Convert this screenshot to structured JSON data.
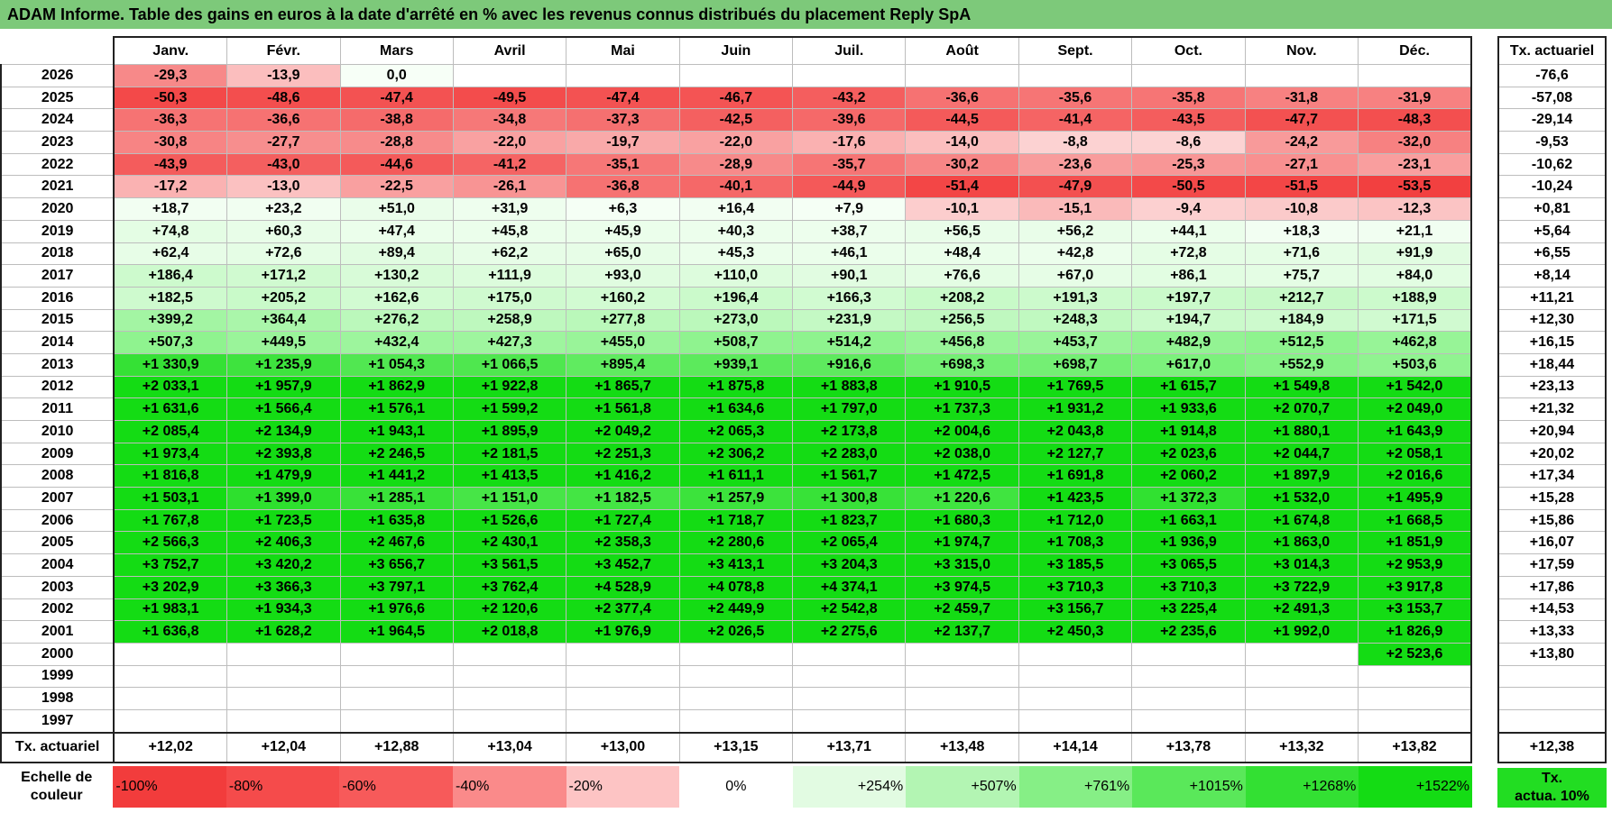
{
  "title": "ADAM Informe. Table des gains en euros à la date d'arrêté en % avec les revenus connus distribués du placement Reply SpA",
  "months": [
    "Janv.",
    "Févr.",
    "Mars",
    "Avril",
    "Mai",
    "Juin",
    "Juil.",
    "Août",
    "Sept.",
    "Oct.",
    "Nov.",
    "Déc."
  ],
  "tx_header": "Tx. actuariel",
  "rows": [
    {
      "year": "2026",
      "tx": "-76,6",
      "values": [
        "-29,3",
        "-13,9",
        "0,0",
        "",
        "",
        "",
        "",
        "",
        "",
        "",
        "",
        ""
      ]
    },
    {
      "year": "2025",
      "tx": "-57,08",
      "values": [
        "-50,3",
        "-48,6",
        "-47,4",
        "-49,5",
        "-47,4",
        "-46,7",
        "-43,2",
        "-36,6",
        "-35,6",
        "-35,8",
        "-31,8",
        "-31,9"
      ]
    },
    {
      "year": "2024",
      "tx": "-29,14",
      "values": [
        "-36,3",
        "-36,6",
        "-38,8",
        "-34,8",
        "-37,3",
        "-42,5",
        "-39,6",
        "-44,5",
        "-41,4",
        "-43,5",
        "-47,7",
        "-48,3"
      ]
    },
    {
      "year": "2023",
      "tx": "-9,53",
      "values": [
        "-30,8",
        "-27,7",
        "-28,8",
        "-22,0",
        "-19,7",
        "-22,0",
        "-17,6",
        "-14,0",
        "-8,8",
        "-8,6",
        "-24,2",
        "-32,0"
      ]
    },
    {
      "year": "2022",
      "tx": "-10,62",
      "values": [
        "-43,9",
        "-43,0",
        "-44,6",
        "-41,2",
        "-35,1",
        "-28,9",
        "-35,7",
        "-30,2",
        "-23,6",
        "-25,3",
        "-27,1",
        "-23,1"
      ]
    },
    {
      "year": "2021",
      "tx": "-10,24",
      "values": [
        "-17,2",
        "-13,0",
        "-22,5",
        "-26,1",
        "-36,8",
        "-40,1",
        "-44,9",
        "-51,4",
        "-47,9",
        "-50,5",
        "-51,5",
        "-53,5"
      ]
    },
    {
      "year": "2020",
      "tx": "+0,81",
      "values": [
        "+18,7",
        "+23,2",
        "+51,0",
        "+31,9",
        "+6,3",
        "+16,4",
        "+7,9",
        "-10,1",
        "-15,1",
        "-9,4",
        "-10,8",
        "-12,3"
      ]
    },
    {
      "year": "2019",
      "tx": "+5,64",
      "values": [
        "+74,8",
        "+60,3",
        "+47,4",
        "+45,8",
        "+45,9",
        "+40,3",
        "+38,7",
        "+56,5",
        "+56,2",
        "+44,1",
        "+18,3",
        "+21,1"
      ]
    },
    {
      "year": "2018",
      "tx": "+6,55",
      "values": [
        "+62,4",
        "+72,6",
        "+89,4",
        "+62,2",
        "+65,0",
        "+45,3",
        "+46,1",
        "+48,4",
        "+42,8",
        "+72,8",
        "+71,6",
        "+91,9"
      ]
    },
    {
      "year": "2017",
      "tx": "+8,14",
      "values": [
        "+186,4",
        "+171,2",
        "+130,2",
        "+111,9",
        "+93,0",
        "+110,0",
        "+90,1",
        "+76,6",
        "+67,0",
        "+86,1",
        "+75,7",
        "+84,0"
      ]
    },
    {
      "year": "2016",
      "tx": "+11,21",
      "values": [
        "+182,5",
        "+205,2",
        "+162,6",
        "+175,0",
        "+160,2",
        "+196,4",
        "+166,3",
        "+208,2",
        "+191,3",
        "+197,7",
        "+212,7",
        "+188,9"
      ]
    },
    {
      "year": "2015",
      "tx": "+12,30",
      "values": [
        "+399,2",
        "+364,4",
        "+276,2",
        "+258,9",
        "+277,8",
        "+273,0",
        "+231,9",
        "+256,5",
        "+248,3",
        "+194,7",
        "+184,9",
        "+171,5"
      ]
    },
    {
      "year": "2014",
      "tx": "+16,15",
      "values": [
        "+507,3",
        "+449,5",
        "+432,4",
        "+427,3",
        "+455,0",
        "+508,7",
        "+514,2",
        "+456,8",
        "+453,7",
        "+482,9",
        "+512,5",
        "+462,8"
      ]
    },
    {
      "year": "2013",
      "tx": "+18,44",
      "values": [
        "+1 330,9",
        "+1 235,9",
        "+1 054,3",
        "+1 066,5",
        "+895,4",
        "+939,1",
        "+916,6",
        "+698,3",
        "+698,7",
        "+617,0",
        "+552,9",
        "+503,6"
      ]
    },
    {
      "year": "2012",
      "tx": "+23,13",
      "values": [
        "+2 033,1",
        "+1 957,9",
        "+1 862,9",
        "+1 922,8",
        "+1 865,7",
        "+1 875,8",
        "+1 883,8",
        "+1 910,5",
        "+1 769,5",
        "+1 615,7",
        "+1 549,8",
        "+1 542,0"
      ]
    },
    {
      "year": "2011",
      "tx": "+21,32",
      "values": [
        "+1 631,6",
        "+1 566,4",
        "+1 576,1",
        "+1 599,2",
        "+1 561,8",
        "+1 634,6",
        "+1 797,0",
        "+1 737,3",
        "+1 931,2",
        "+1 933,6",
        "+2 070,7",
        "+2 049,0"
      ]
    },
    {
      "year": "2010",
      "tx": "+20,94",
      "values": [
        "+2 085,4",
        "+2 134,9",
        "+1 943,1",
        "+1 895,9",
        "+2 049,2",
        "+2 065,3",
        "+2 173,8",
        "+2 004,6",
        "+2 043,8",
        "+1 914,8",
        "+1 880,1",
        "+1 643,9"
      ]
    },
    {
      "year": "2009",
      "tx": "+20,02",
      "values": [
        "+1 973,4",
        "+2 393,8",
        "+2 246,5",
        "+2 181,5",
        "+2 251,3",
        "+2 306,2",
        "+2 283,0",
        "+2 038,0",
        "+2 127,7",
        "+2 023,6",
        "+2 044,7",
        "+2 058,1"
      ]
    },
    {
      "year": "2008",
      "tx": "+17,34",
      "values": [
        "+1 816,8",
        "+1 479,9",
        "+1 441,2",
        "+1 413,5",
        "+1 416,2",
        "+1 611,1",
        "+1 561,7",
        "+1 472,5",
        "+1 691,8",
        "+2 060,2",
        "+1 897,9",
        "+2 016,6"
      ]
    },
    {
      "year": "2007",
      "tx": "+15,28",
      "values": [
        "+1 503,1",
        "+1 399,0",
        "+1 285,1",
        "+1 151,0",
        "+1 182,5",
        "+1 257,9",
        "+1 300,8",
        "+1 220,6",
        "+1 423,5",
        "+1 372,3",
        "+1 532,0",
        "+1 495,9"
      ]
    },
    {
      "year": "2006",
      "tx": "+15,86",
      "values": [
        "+1 767,8",
        "+1 723,5",
        "+1 635,8",
        "+1 526,6",
        "+1 727,4",
        "+1 718,7",
        "+1 823,7",
        "+1 680,3",
        "+1 712,0",
        "+1 663,1",
        "+1 674,8",
        "+1 668,5"
      ]
    },
    {
      "year": "2005",
      "tx": "+16,07",
      "values": [
        "+2 566,3",
        "+2 406,3",
        "+2 467,6",
        "+2 430,1",
        "+2 358,3",
        "+2 280,6",
        "+2 065,4",
        "+1 974,7",
        "+1 708,3",
        "+1 936,9",
        "+1 863,0",
        "+1 851,9"
      ]
    },
    {
      "year": "2004",
      "tx": "+17,59",
      "values": [
        "+3 752,7",
        "+3 420,2",
        "+3 656,7",
        "+3 561,5",
        "+3 452,7",
        "+3 413,1",
        "+3 204,3",
        "+3 315,0",
        "+3 185,5",
        "+3 065,5",
        "+3 014,3",
        "+2 953,9"
      ]
    },
    {
      "year": "2003",
      "tx": "+17,86",
      "values": [
        "+3 202,9",
        "+3 366,3",
        "+3 797,1",
        "+3 762,4",
        "+4 528,9",
        "+4 078,8",
        "+4 374,1",
        "+3 974,5",
        "+3 710,3",
        "+3 710,3",
        "+3 722,9",
        "+3 917,8"
      ]
    },
    {
      "year": "2002",
      "tx": "+14,53",
      "values": [
        "+1 983,1",
        "+1 934,3",
        "+1 976,6",
        "+2 120,6",
        "+2 377,4",
        "+2 449,9",
        "+2 542,8",
        "+2 459,7",
        "+3 156,7",
        "+3 225,4",
        "+2 491,3",
        "+3 153,7"
      ]
    },
    {
      "year": "2001",
      "tx": "+13,33",
      "values": [
        "+1 636,8",
        "+1 628,2",
        "+1 964,5",
        "+2 018,8",
        "+1 976,9",
        "+2 026,5",
        "+2 275,6",
        "+2 137,7",
        "+2 450,3",
        "+2 235,6",
        "+1 992,0",
        "+1 826,9"
      ]
    },
    {
      "year": "2000",
      "tx": "+13,80",
      "values": [
        "",
        "",
        "",
        "",
        "",
        "",
        "",
        "",
        "",
        "",
        "",
        "+2 523,6"
      ]
    },
    {
      "year": "1999",
      "tx": "",
      "values": [
        "",
        "",
        "",
        "",
        "",
        "",
        "",
        "",
        "",
        "",
        "",
        ""
      ]
    },
    {
      "year": "1998",
      "tx": "",
      "values": [
        "",
        "",
        "",
        "",
        "",
        "",
        "",
        "",
        "",
        "",
        "",
        ""
      ]
    },
    {
      "year": "1997",
      "tx": "",
      "values": [
        "",
        "",
        "",
        "",
        "",
        "",
        "",
        "",
        "",
        "",
        "",
        ""
      ]
    }
  ],
  "footer": {
    "label": "Tx. actuariel",
    "values": [
      "+12,02",
      "+12,04",
      "+12,88",
      "+13,04",
      "+13,00",
      "+13,15",
      "+13,71",
      "+13,48",
      "+14,14",
      "+13,78",
      "+13,32",
      "+13,82"
    ],
    "total": "+12,38"
  },
  "scale": {
    "label_line1": "Echelle de",
    "label_line2": "couleur",
    "items": [
      {
        "text": "-100%",
        "color": "#f23c3c",
        "align": "left"
      },
      {
        "text": "-80%",
        "color": "#f54b4b",
        "align": "left"
      },
      {
        "text": "-60%",
        "color": "#f75a5a",
        "align": "left"
      },
      {
        "text": "-40%",
        "color": "#fa8a8a",
        "align": "left"
      },
      {
        "text": "-20%",
        "color": "#fdc4c4",
        "align": "left"
      },
      {
        "text": "0%",
        "color": "#ffffff",
        "align": "center"
      },
      {
        "text": "+254%",
        "color": "#e2fbe2",
        "align": "right"
      },
      {
        "text": "+507%",
        "color": "#b3f5b3",
        "align": "right"
      },
      {
        "text": "+761%",
        "color": "#86ef86",
        "align": "right"
      },
      {
        "text": "+1015%",
        "color": "#5ae85a",
        "align": "right"
      },
      {
        "text": "+1268%",
        "color": "#33e033",
        "align": "right"
      },
      {
        "text": "+1522%",
        "color": "#14dc14",
        "align": "right"
      }
    ],
    "tx_line1": "Tx.",
    "tx_line2": "actua. 10%",
    "tx_color": "#22dd22"
  }
}
